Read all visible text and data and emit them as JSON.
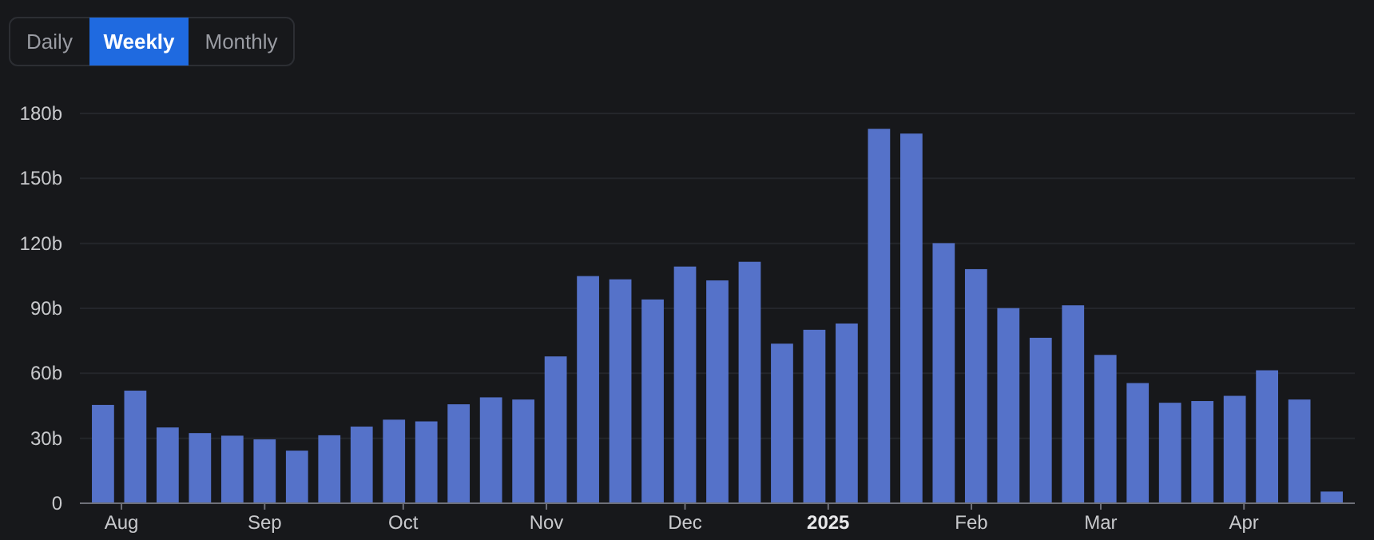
{
  "chart_data": {
    "type": "bar",
    "x": [
      "2024-07-28",
      "2024-08-04",
      "2024-08-11",
      "2024-08-18",
      "2024-08-25",
      "2024-09-01",
      "2024-09-08",
      "2024-09-15",
      "2024-09-22",
      "2024-09-29",
      "2024-10-06",
      "2024-10-13",
      "2024-10-20",
      "2024-10-27",
      "2024-11-03",
      "2024-11-10",
      "2024-11-17",
      "2024-11-24",
      "2024-12-01",
      "2024-12-08",
      "2024-12-15",
      "2024-12-22",
      "2024-12-29",
      "2025-01-05",
      "2025-01-12",
      "2025-01-19",
      "2025-01-26",
      "2025-02-02",
      "2025-02-09",
      "2025-02-16",
      "2025-02-23",
      "2025-03-02",
      "2025-03-09",
      "2025-03-16",
      "2025-03-23",
      "2025-03-30",
      "2025-04-06",
      "2025-04-13",
      "2025-04-20"
    ],
    "values": [
      45.4,
      52,
      35,
      32.4,
      31.2,
      29.5,
      24.3,
      31.4,
      35.4,
      38.6,
      37.8,
      45.7,
      48.9,
      47.9,
      67.8,
      104.9,
      103.4,
      94.1,
      109.3,
      102.9,
      111.5,
      73.7,
      80.1,
      83,
      172.9,
      170.7,
      120.1,
      108.1,
      90.1,
      76.4,
      91.4,
      68.5,
      55.5,
      46.4,
      47.2,
      49.6,
      61.4,
      47.9,
      5.4
    ],
    "color": "#5572c9",
    "xlim": [
      "2024-07-23",
      "2025-04-25"
    ],
    "xticks": [
      {
        "value": "2024-08-01",
        "label": "Aug"
      },
      {
        "value": "2024-09-01",
        "label": "Sep"
      },
      {
        "value": "2024-10-01",
        "label": "Oct"
      },
      {
        "value": "2024-11-01",
        "label": "Nov"
      },
      {
        "value": "2024-12-01",
        "label": "Dec"
      },
      {
        "value": "2025-01-01",
        "label": "2025"
      },
      {
        "value": "2025-02-01",
        "label": "Feb"
      },
      {
        "value": "2025-03-01",
        "label": "Mar"
      },
      {
        "value": "2025-04-01",
        "label": "Apr"
      }
    ],
    "ylim": [
      0,
      180
    ],
    "yticks": [
      {
        "value": 0,
        "label": "0"
      },
      {
        "value": 30,
        "label": "30b"
      },
      {
        "value": 60,
        "label": "60b"
      },
      {
        "value": 90,
        "label": "90b"
      },
      {
        "value": 120,
        "label": "120b"
      },
      {
        "value": 150,
        "label": "150b"
      },
      {
        "value": 180,
        "label": "180b"
      }
    ],
    "grid": "y",
    "annotations": [
      "Daily",
      "Weekly",
      "Monthly"
    ]
  }
}
